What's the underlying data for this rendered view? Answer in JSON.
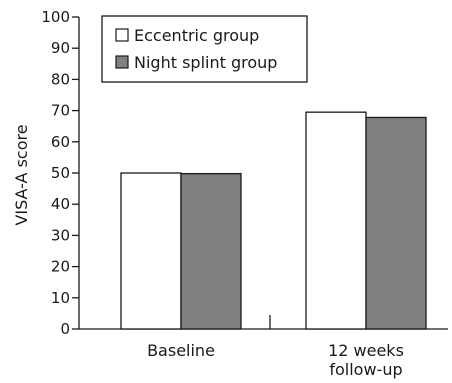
{
  "chart_data": {
    "type": "bar",
    "title": "",
    "xlabel": "",
    "ylabel": "VISA-A score",
    "ylim": [
      0,
      100
    ],
    "yticks": [
      "0",
      "10",
      "20",
      "30",
      "40",
      "50",
      "60",
      "70",
      "80",
      "90",
      "100"
    ],
    "categories": [
      [
        "Baseline"
      ],
      [
        "12 weeks",
        "follow-up"
      ]
    ],
    "series": [
      {
        "name": "Eccentric group",
        "values": [
          50,
          69.5
        ],
        "color": "#ffffff"
      },
      {
        "name": "Night splint group",
        "values": [
          49.8,
          67.8
        ],
        "color": "#808080"
      }
    ],
    "legend": "top-left",
    "grid": false
  }
}
